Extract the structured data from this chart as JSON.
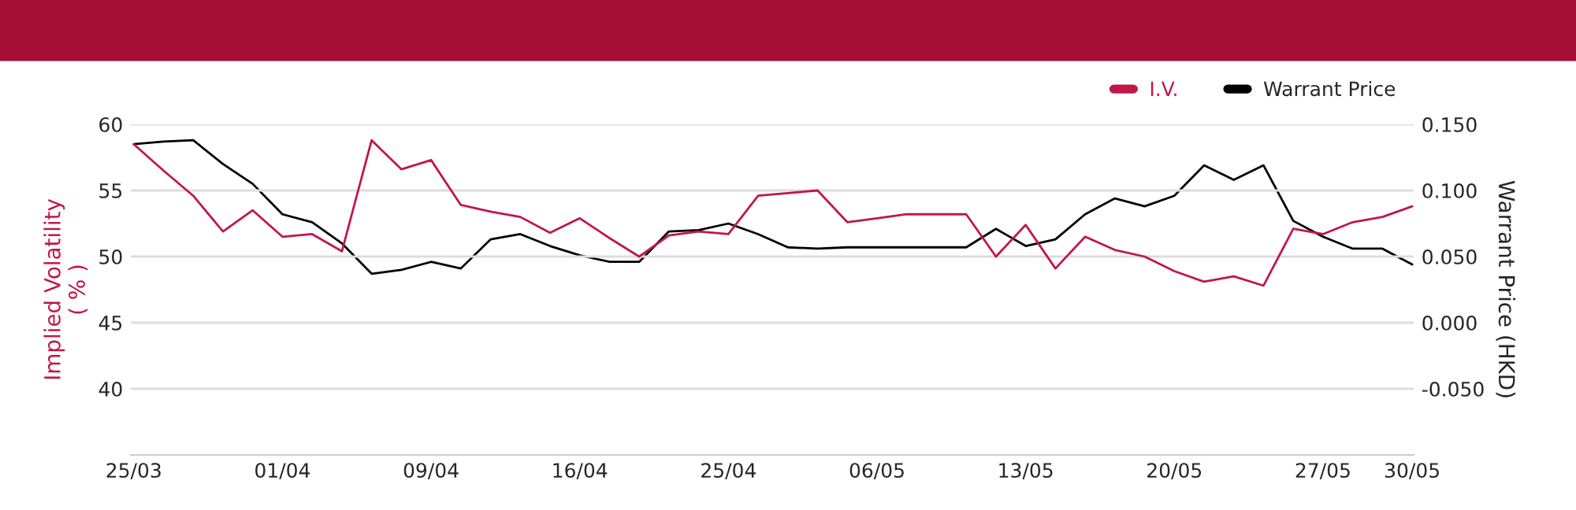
{
  "chart_data": {
    "type": "line",
    "categories": [
      "25/03",
      null,
      null,
      null,
      null,
      "01/04",
      null,
      null,
      null,
      null,
      "09/04",
      null,
      null,
      null,
      null,
      "16/04",
      null,
      null,
      null,
      null,
      "25/04",
      null,
      null,
      null,
      null,
      "06/05",
      null,
      null,
      null,
      null,
      "13/05",
      null,
      null,
      null,
      null,
      "20/05",
      null,
      null,
      null,
      null,
      "27/05",
      null,
      null,
      "30/05"
    ],
    "series": [
      {
        "name": "I.V.",
        "color": "#c0174a",
        "values": [
          58.5,
          56.5,
          54.6,
          51.9,
          53.5,
          51.5,
          51.7,
          50.4,
          58.8,
          56.6,
          57.3,
          53.9,
          53.4,
          53.0,
          51.8,
          52.9,
          51.4,
          50.0,
          51.6,
          51.9,
          51.7,
          54.6,
          54.8,
          55.0,
          52.6,
          52.9,
          53.2,
          53.2,
          53.2,
          50.0,
          52.4,
          49.1,
          51.5,
          50.5,
          50.0,
          48.9,
          48.1,
          48.5,
          47.8,
          52.1,
          51.7,
          52.6,
          53.0,
          53.8
        ]
      },
      {
        "name": "Warrant Price",
        "color": "#000000",
        "axis": "y2",
        "values": [
          0.135,
          0.137,
          0.138,
          0.12,
          0.105,
          0.082,
          0.076,
          0.06,
          0.037,
          0.04,
          0.046,
          0.041,
          0.063,
          0.067,
          0.058,
          0.051,
          0.046,
          0.046,
          0.069,
          0.07,
          0.075,
          0.067,
          0.057,
          0.056,
          0.057,
          0.057,
          0.057,
          0.057,
          0.057,
          0.071,
          0.058,
          0.063,
          0.082,
          0.094,
          0.088,
          0.096,
          0.119,
          0.108,
          0.119,
          0.077,
          0.065,
          0.056,
          0.056,
          0.044
        ]
      }
    ],
    "ylabel": "Implied Volatility\n( % )",
    "y2label": "Warrant Price (HKD)",
    "ylim": [
      35,
      60
    ],
    "yticks": [
      40,
      45,
      50,
      55,
      60
    ],
    "y2lim": [
      -0.1,
      0.15
    ],
    "y2ticks": [
      {
        "value": -0.05,
        "label": "-0.050"
      },
      {
        "value": 0,
        "label": "0.000"
      },
      {
        "value": 0.05,
        "label": "0.050"
      },
      {
        "value": 0.1,
        "label": "0.100"
      },
      {
        "value": 0.15,
        "label": "0.150"
      }
    ],
    "grid": "y",
    "legend": "top right",
    "marker": "none",
    "line_style": "solid"
  }
}
